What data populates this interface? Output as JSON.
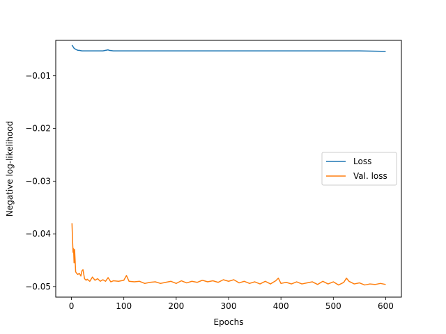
{
  "chart_data": {
    "type": "line",
    "title": "",
    "xlabel": "Epochs",
    "ylabel": "Negative log-likelihood",
    "xlim": [
      -30,
      630
    ],
    "ylim": [
      -0.052,
      -0.0033
    ],
    "xticks": [
      0,
      100,
      200,
      300,
      400,
      500,
      600
    ],
    "xtick_labels": [
      "0",
      "100",
      "200",
      "300",
      "400",
      "500",
      "600"
    ],
    "yticks": [
      -0.01,
      -0.02,
      -0.03,
      -0.04,
      -0.05
    ],
    "ytick_labels": [
      "−0.01",
      "−0.02",
      "−0.03",
      "−0.04",
      "−0.05"
    ],
    "grid": false,
    "legend_position": "center-right",
    "series": [
      {
        "name": "Loss",
        "color": "#1f77b4",
        "x": [
          1,
          3,
          5,
          8,
          10,
          13,
          15,
          20,
          25,
          30,
          40,
          50,
          60,
          70,
          72,
          80,
          100,
          150,
          200,
          250,
          300,
          350,
          400,
          450,
          500,
          550,
          600
        ],
        "y": [
          -0.0042,
          -0.0045,
          -0.0048,
          -0.005,
          -0.0051,
          -0.0052,
          -0.0052,
          -0.0053,
          -0.0053,
          -0.0053,
          -0.0053,
          -0.0053,
          -0.0053,
          -0.0051,
          -0.0052,
          -0.0053,
          -0.0053,
          -0.0053,
          -0.0053,
          -0.0053,
          -0.0053,
          -0.0053,
          -0.0053,
          -0.0053,
          -0.0053,
          -0.0053,
          -0.0054
        ]
      },
      {
        "name": "Val. loss",
        "color": "#ff7f0e",
        "x": [
          1,
          2,
          3,
          4,
          5,
          6,
          7,
          8,
          10,
          12,
          15,
          18,
          20,
          22,
          25,
          28,
          30,
          35,
          40,
          45,
          50,
          55,
          60,
          65,
          70,
          75,
          80,
          90,
          100,
          105,
          110,
          120,
          130,
          140,
          150,
          160,
          170,
          180,
          190,
          200,
          210,
          220,
          230,
          240,
          250,
          260,
          270,
          280,
          290,
          300,
          310,
          320,
          330,
          340,
          350,
          360,
          370,
          380,
          390,
          395,
          400,
          410,
          420,
          430,
          440,
          450,
          460,
          470,
          480,
          490,
          500,
          510,
          520,
          525,
          530,
          540,
          550,
          560,
          570,
          580,
          590,
          600
        ],
        "y": [
          -0.038,
          -0.041,
          -0.0435,
          -0.0428,
          -0.0455,
          -0.043,
          -0.045,
          -0.0472,
          -0.0475,
          -0.0477,
          -0.0475,
          -0.048,
          -0.047,
          -0.0468,
          -0.0485,
          -0.0488,
          -0.0486,
          -0.049,
          -0.0482,
          -0.0488,
          -0.0485,
          -0.049,
          -0.0487,
          -0.049,
          -0.0483,
          -0.0491,
          -0.0489,
          -0.049,
          -0.0488,
          -0.0479,
          -0.049,
          -0.0491,
          -0.049,
          -0.0494,
          -0.0492,
          -0.0491,
          -0.0494,
          -0.0492,
          -0.049,
          -0.0494,
          -0.0489,
          -0.0493,
          -0.049,
          -0.0492,
          -0.0488,
          -0.0491,
          -0.0489,
          -0.0492,
          -0.0487,
          -0.049,
          -0.0487,
          -0.0493,
          -0.049,
          -0.0494,
          -0.0491,
          -0.0495,
          -0.049,
          -0.0495,
          -0.0489,
          -0.0484,
          -0.0494,
          -0.0492,
          -0.0495,
          -0.0491,
          -0.0495,
          -0.0493,
          -0.0491,
          -0.0496,
          -0.049,
          -0.0495,
          -0.0491,
          -0.0497,
          -0.0492,
          -0.0484,
          -0.049,
          -0.0495,
          -0.0493,
          -0.0497,
          -0.0495,
          -0.0496,
          -0.0494,
          -0.0496
        ]
      }
    ]
  }
}
